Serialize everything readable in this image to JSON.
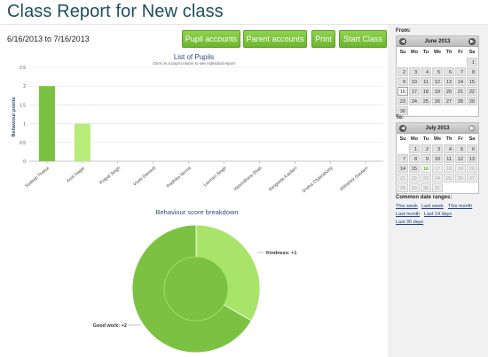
{
  "page": {
    "title": "Class Report for New class",
    "date_range": "6/16/2013 to 7/16/2013"
  },
  "buttons": {
    "pupil_accounts": "Pupil accounts",
    "parent_accounts": "Parent accounts",
    "print": "Print",
    "start_class": "Start Class"
  },
  "colors": {
    "accent_green": "#7cc242",
    "title_blue": "#1f4d5c",
    "bar_dark": "#7cc242",
    "bar_light": "#b6ec7a"
  },
  "pupils_chart": {
    "title": "List of Pupils",
    "subtitle": "Click on a pupil column to see individual report",
    "ylabel": "Behaviour points"
  },
  "breakdown_chart": {
    "title": "Behaviour score breakdown",
    "labels": {
      "kindness": "Kindness: +1",
      "good_work": "Good work: +2"
    }
  },
  "chart_data": [
    {
      "type": "bar",
      "title": "List of Pupils",
      "xlabel": "",
      "ylabel": "Behaviour points",
      "ylim": [
        0,
        2.5
      ],
      "yticks": [
        "0",
        "0.5",
        "1",
        "1.5",
        "2",
        "2.5"
      ],
      "grid": true,
      "categories": [
        "Sudeep Thakur",
        "Amit Nagar",
        "Pritpal Singh",
        "Vivek Dwivedi",
        "Radhika Verma",
        "Laxman Singh",
        "Vasundhara Shah",
        "Sangeeta Kardam",
        "Sneha Chakraborty",
        "Abhishek Gautam"
      ],
      "values": [
        2,
        1,
        0,
        0,
        0,
        0,
        0,
        0,
        0,
        0
      ],
      "bar_colors": [
        "#7cc242",
        "#b6ec7a",
        "#7cc242",
        "#7cc242",
        "#7cc242",
        "#7cc242",
        "#7cc242",
        "#7cc242",
        "#7cc242",
        "#7cc242"
      ]
    },
    {
      "type": "pie",
      "title": "Behaviour score breakdown",
      "labels": [
        "Kindness",
        "Good work"
      ],
      "values": [
        1,
        2
      ],
      "colors": [
        "#a9e46a",
        "#7cc242"
      ]
    }
  ],
  "calendars": {
    "from": {
      "label": "From:",
      "month": "June 2013",
      "dows": [
        "Su",
        "Mo",
        "Tu",
        "We",
        "Th",
        "Fr",
        "Sa"
      ],
      "lead": 6,
      "days": 30,
      "selected": 16
    },
    "to": {
      "label": "To:",
      "month": "July 2013",
      "dows": [
        "Su",
        "Mo",
        "Tu",
        "We",
        "Th",
        "Fr",
        "Sa"
      ],
      "lead": 1,
      "days": 31,
      "selected": 16
    }
  },
  "common_ranges": {
    "label": "Common date ranges:",
    "links": [
      "This week",
      "Last week",
      "This month",
      "Last month",
      "Last 14 days",
      "Last 30 days"
    ]
  }
}
